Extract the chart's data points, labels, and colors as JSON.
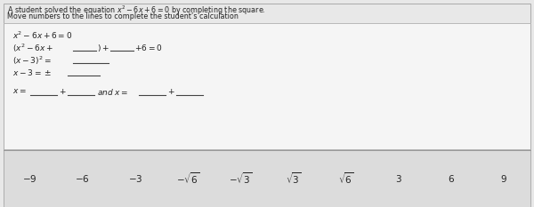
{
  "title_line1": "A student solved the equation $x^2 - 6x + 6 = 0$ by completing the square.",
  "title_line2": "Move numbers to the lines to complete the student’s calculation",
  "bg_color": "#e8e8e8",
  "box_bg": "#f5f5f5",
  "tile_box_bg": "#e0e0e0",
  "border_color": "#aaaaaa",
  "text_color": "#222222",
  "underline_color": "#444444",
  "font_size_title": 5.8,
  "font_size_eq": 6.5,
  "font_size_tiles": 7.5,
  "tile_labels": [
    "-9",
    "-6",
    "-3",
    "-\\sqrt{6}",
    "-\\sqrt{3}",
    "\\sqrt{3}",
    "\\sqrt{6}",
    "3",
    "6",
    "9"
  ]
}
